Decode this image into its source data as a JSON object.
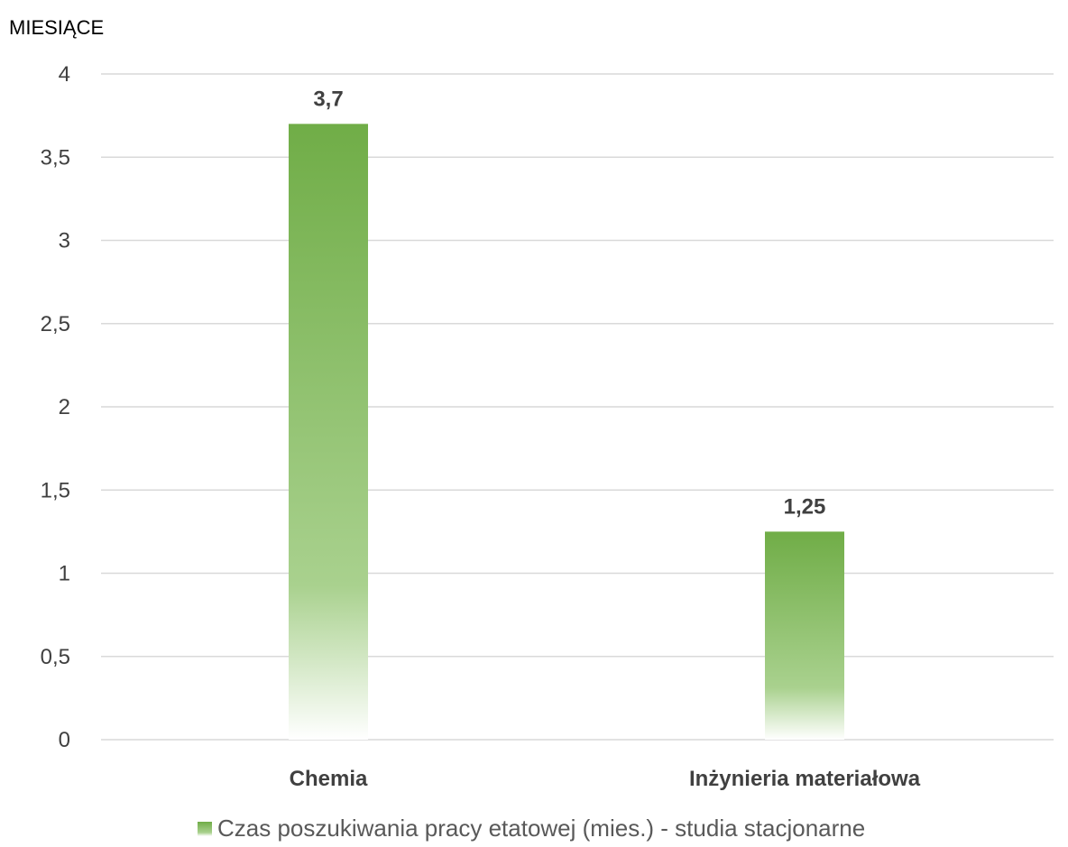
{
  "chart_data": {
    "type": "bar",
    "ylabel": "MIESIĄCE",
    "categories": [
      "Chemia",
      "Inżynieria materiałowa"
    ],
    "series": [
      {
        "name": "Czas poszukiwania pracy etatowej (mies.) - studia stacjonarne",
        "values": [
          3.7,
          1.25
        ],
        "value_labels": [
          "3,7",
          "1,25"
        ]
      }
    ],
    "ylim": [
      0,
      4
    ],
    "yticks": [
      0,
      0.5,
      1,
      1.5,
      2,
      2.5,
      3,
      3.5,
      4
    ],
    "ytick_labels": [
      "0",
      "0,5",
      "1",
      "1,5",
      "2",
      "2,5",
      "3",
      "3,5",
      "4"
    ],
    "grid": true,
    "legend_position": "bottom",
    "colors": {
      "bar_top": "#70ad47",
      "bar_mid": "#a9d18e",
      "grid": "#d9d9d9",
      "text": "#404040"
    }
  }
}
